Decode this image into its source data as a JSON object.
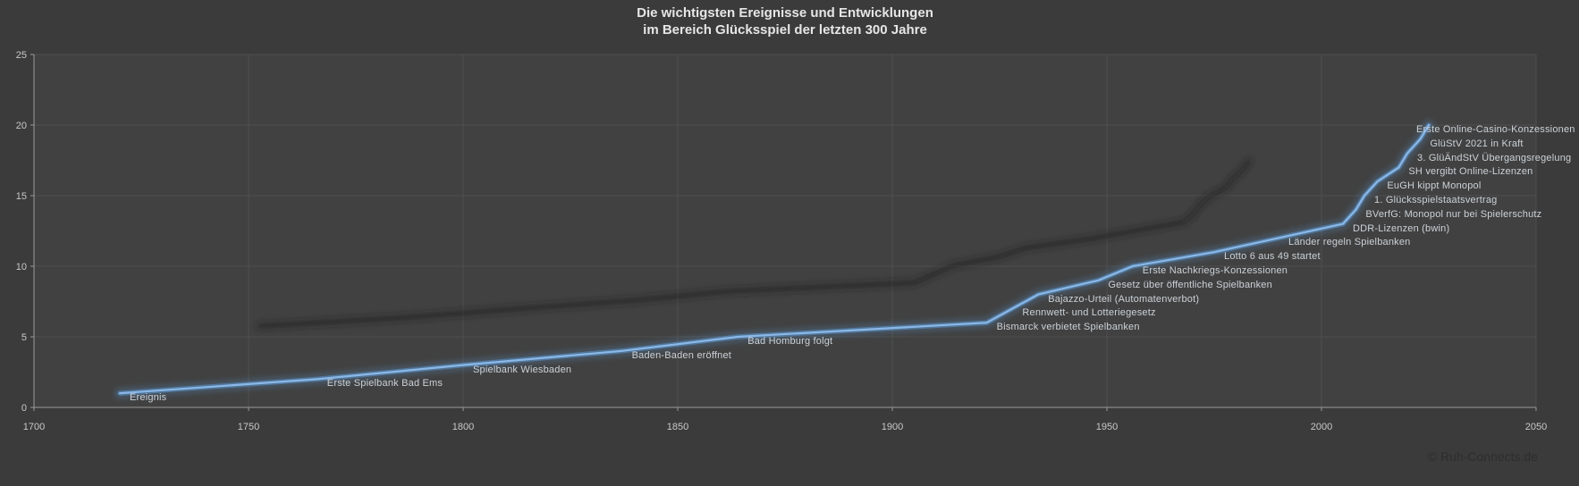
{
  "title": {
    "line1": "Die wichtigsten Ereignisse und Entwicklungen",
    "line2": "im Bereich Glücksspiel der letzten 300 Jahre"
  },
  "footer": {
    "copyright": "© Ruh-Connects.de"
  },
  "colors": {
    "background": "#3b3b3b",
    "plot_fill": "#414141",
    "gridline": "#4e4e4e",
    "axis_line": "#9a9a9a",
    "tick_text": "#c9c9c9",
    "title_text": "#e6e6e6",
    "label_text": "#ccd2d8",
    "line_core": "#8cb8e8",
    "line_glow": "#5b9bd5",
    "shadow": "#232323",
    "copyright_text": "#2d2d2d"
  },
  "chart_data": {
    "type": "line",
    "title": "Die wichtigsten Ereignisse und Entwicklungen im Bereich Glücksspiel der letzten 300 Jahre",
    "xlabel": "",
    "ylabel": "",
    "xlim": [
      1700,
      2050
    ],
    "ylim": [
      0,
      25
    ],
    "x_ticks": [
      1700,
      1750,
      1800,
      1850,
      1900,
      1950,
      2000,
      2050
    ],
    "y_ticks": [
      0,
      5,
      10,
      15,
      20,
      25
    ],
    "grid": true,
    "legend": "none",
    "label_position": "right-of-point",
    "effects": {
      "glow": true,
      "shadow": "skewed-copy-upper-left"
    },
    "series": [
      {
        "name": "Ereignis",
        "points": [
          {
            "year": 1720,
            "value": 1,
            "label": "Ereignis"
          },
          {
            "year": 1766,
            "value": 2,
            "label": "Erste Spielbank Bad Ems"
          },
          {
            "year": 1800,
            "value": 3,
            "label": "Spielbank Wiesbaden"
          },
          {
            "year": 1837,
            "value": 4,
            "label": "Baden-Baden eröffnet"
          },
          {
            "year": 1864,
            "value": 5,
            "label": "Bad Homburg folgt"
          },
          {
            "year": 1922,
            "value": 6,
            "label": "Bismarck verbietet Spielbanken"
          },
          {
            "year": 1928,
            "value": 7,
            "label": "Rennwett- und Lotteriegesetz"
          },
          {
            "year": 1934,
            "value": 8,
            "label": "Bajazzo-Urteil (Automatenverbot)"
          },
          {
            "year": 1948,
            "value": 9,
            "label": "Gesetz über öffentliche Spielbanken"
          },
          {
            "year": 1956,
            "value": 10,
            "label": "Erste Nachkriegs-Konzessionen"
          },
          {
            "year": 1975,
            "value": 11,
            "label": "Lotto 6 aus 49 startet"
          },
          {
            "year": 1990,
            "value": 12,
            "label": "Länder regeln Spielbanken"
          },
          {
            "year": 2005,
            "value": 13,
            "label": "DDR-Lizenzen (bwin)"
          },
          {
            "year": 2008,
            "value": 14,
            "label": "BVerfG: Monopol nur bei Spielerschutz"
          },
          {
            "year": 2010,
            "value": 15,
            "label": "1. Glücksspielstaatsvertrag"
          },
          {
            "year": 2013,
            "value": 16,
            "label": "EuGH kippt Monopol"
          },
          {
            "year": 2018,
            "value": 17,
            "label": "SH vergibt Online-Lizenzen"
          },
          {
            "year": 2020,
            "value": 18,
            "label": "3. GlüÄndStV Übergangsregelung"
          },
          {
            "year": 2023,
            "value": 19,
            "label": "GlüStV 2021 in Kraft"
          },
          {
            "year": 2025,
            "value": 20,
            "label": "Erste Online-Casino-Konzessionen"
          }
        ]
      }
    ]
  }
}
